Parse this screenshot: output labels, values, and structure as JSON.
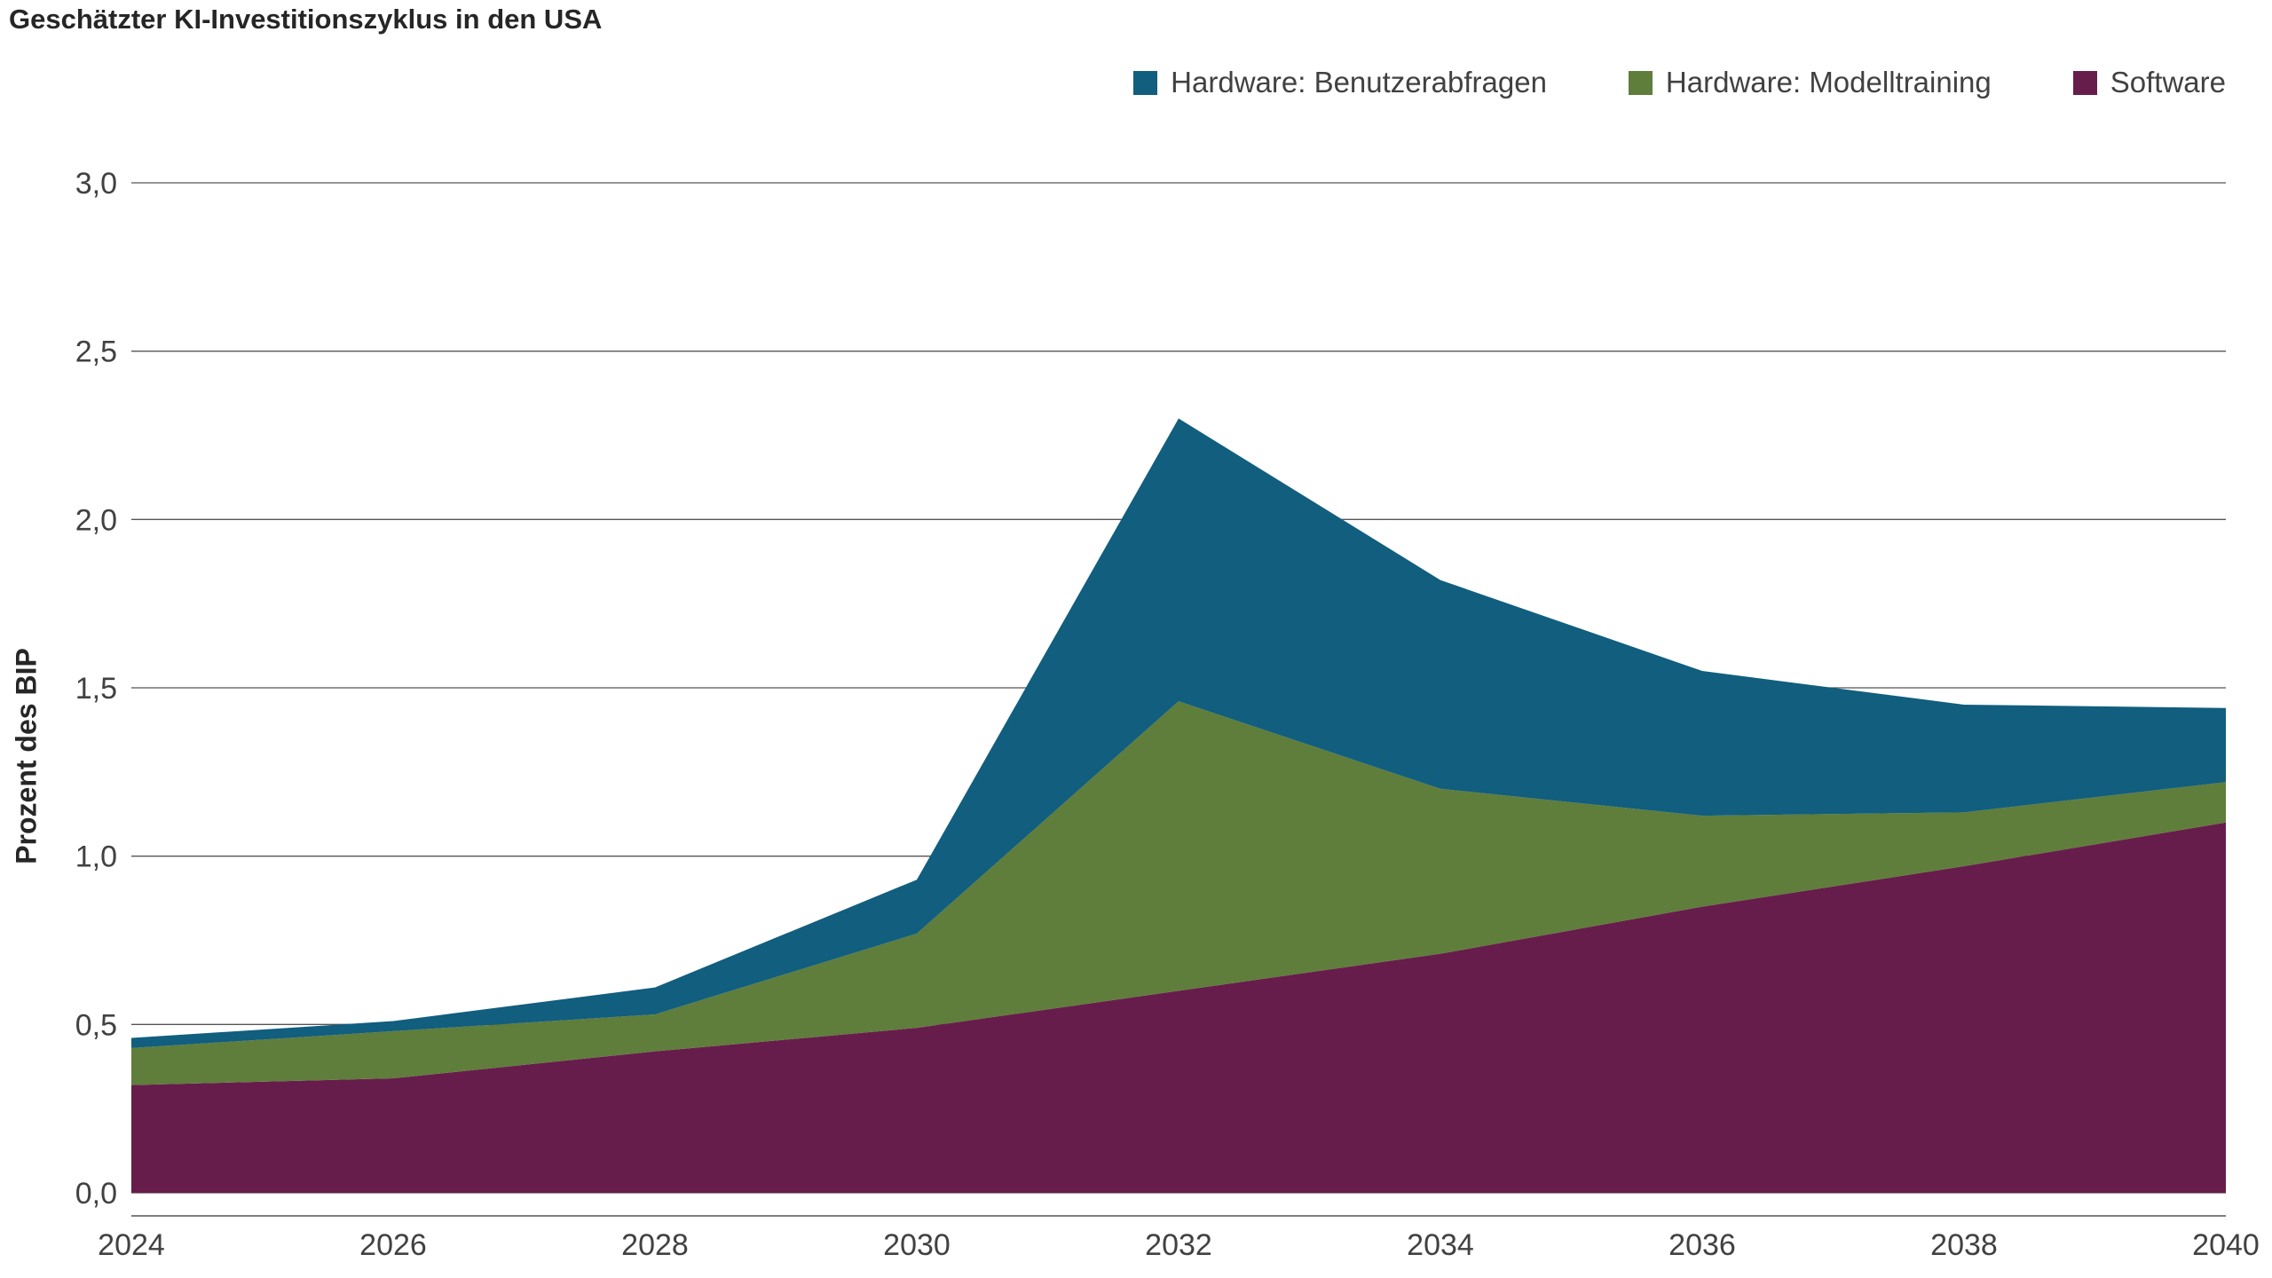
{
  "page": {
    "title": "Geschätzter KI-Investitionszyklus in den USA"
  },
  "axes": {
    "y_title": "Prozent des BIP"
  },
  "colors": {
    "background": "#ffffff",
    "gridline": "#555555",
    "axis_line": "#333333",
    "text": "#414141",
    "title_text": "#262626"
  },
  "chart_data": {
    "type": "area",
    "stacked": true,
    "title": "Geschätzter KI-Investitionszyklus in den USA",
    "xlabel": "",
    "ylabel": "Prozent des BIP",
    "x": [
      2024,
      2026,
      2028,
      2030,
      2032,
      2034,
      2036,
      2038,
      2040
    ],
    "x_tick_labels": [
      "2024",
      "2026",
      "2028",
      "2030",
      "2032",
      "2034",
      "2036",
      "2038",
      "2040"
    ],
    "ylim": [
      0,
      3
    ],
    "y_ticks": [
      0,
      0.5,
      1.0,
      1.5,
      2.0,
      2.5,
      3.0
    ],
    "y_tick_labels": [
      "0,0",
      "0,5",
      "1,0",
      "1,5",
      "2,0",
      "2,5",
      "3,0"
    ],
    "grid": true,
    "legend_position": "top-right",
    "series": [
      {
        "name": "Software",
        "color": "#671D4B",
        "values": [
          0.32,
          0.34,
          0.42,
          0.49,
          0.6,
          0.71,
          0.85,
          0.97,
          1.1
        ]
      },
      {
        "name": "Hardware: Modelltraining",
        "color": "#5F7D3B",
        "values": [
          0.11,
          0.14,
          0.11,
          0.28,
          0.86,
          0.49,
          0.27,
          0.16,
          0.12
        ]
      },
      {
        "name": "Hardware: Benutzerabfragen",
        "color": "#115E7E",
        "values": [
          0.03,
          0.03,
          0.08,
          0.16,
          0.84,
          0.62,
          0.43,
          0.32,
          0.22
        ]
      }
    ],
    "cumulative_tops": {
      "software": [
        0.32,
        0.34,
        0.42,
        0.49,
        0.6,
        0.71,
        0.85,
        0.97,
        1.1
      ],
      "hardware_modelltraining": [
        0.43,
        0.48,
        0.53,
        0.77,
        1.46,
        1.2,
        1.12,
        1.13,
        1.22
      ],
      "hardware_benutzerabfragen": [
        0.46,
        0.51,
        0.61,
        0.93,
        2.3,
        1.82,
        1.55,
        1.45,
        1.44
      ]
    }
  }
}
